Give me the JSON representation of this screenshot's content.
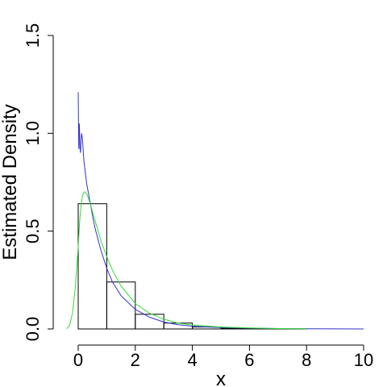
{
  "chart_data": {
    "type": "histogram-density",
    "xlabel": "x",
    "ylabel": "Estimated Density",
    "xlim": [
      -0.5,
      10
    ],
    "ylim": [
      0,
      1.5
    ],
    "x_ticks": [
      0,
      2,
      4,
      6,
      8,
      10
    ],
    "y_ticks": [
      0.0,
      0.5,
      1.0,
      1.5
    ],
    "y_tick_labels": [
      "0.0",
      "0.5",
      "1.0",
      "1.5"
    ],
    "histogram": {
      "bin_edges": [
        0,
        1,
        2,
        3,
        4,
        5,
        6,
        7,
        8,
        9,
        10
      ],
      "densities": [
        0.64,
        0.24,
        0.075,
        0.03,
        0.01,
        0.004,
        0.002,
        0.001,
        0.0,
        0.0
      ]
    },
    "series": [
      {
        "color": "#3333cc",
        "x": [
          0.0,
          0.02,
          0.04,
          0.06,
          0.08,
          0.1,
          0.12,
          0.15,
          0.18,
          0.2,
          0.25,
          0.3,
          0.4,
          0.5,
          0.6,
          0.8,
          1.0,
          1.2,
          1.5,
          2.0,
          2.5,
          3.0,
          3.5,
          4.0,
          5.0,
          6.0,
          7.0,
          8.0,
          9.0,
          10.0
        ],
        "y": [
          1.21,
          0.92,
          1.05,
          0.93,
          0.9,
          0.96,
          1.0,
          0.97,
          0.9,
          0.86,
          0.8,
          0.74,
          0.66,
          0.58,
          0.51,
          0.4,
          0.31,
          0.24,
          0.17,
          0.1,
          0.06,
          0.035,
          0.022,
          0.014,
          0.007,
          0.004,
          0.002,
          0.001,
          0.0005,
          0.0002
        ]
      },
      {
        "color": "#33dd33",
        "x": [
          -0.4,
          -0.3,
          -0.2,
          -0.1,
          0.0,
          0.05,
          0.1,
          0.15,
          0.2,
          0.25,
          0.3,
          0.4,
          0.5,
          0.6,
          0.8,
          1.0,
          1.2,
          1.5,
          2.0,
          2.5,
          3.0,
          3.5,
          4.0,
          5.0,
          6.0,
          7.0,
          8.0
        ],
        "y": [
          0.0,
          0.02,
          0.08,
          0.22,
          0.42,
          0.55,
          0.63,
          0.68,
          0.7,
          0.7,
          0.69,
          0.65,
          0.6,
          0.55,
          0.45,
          0.37,
          0.3,
          0.22,
          0.13,
          0.08,
          0.05,
          0.03,
          0.02,
          0.01,
          0.005,
          0.002,
          0.001
        ]
      }
    ]
  }
}
